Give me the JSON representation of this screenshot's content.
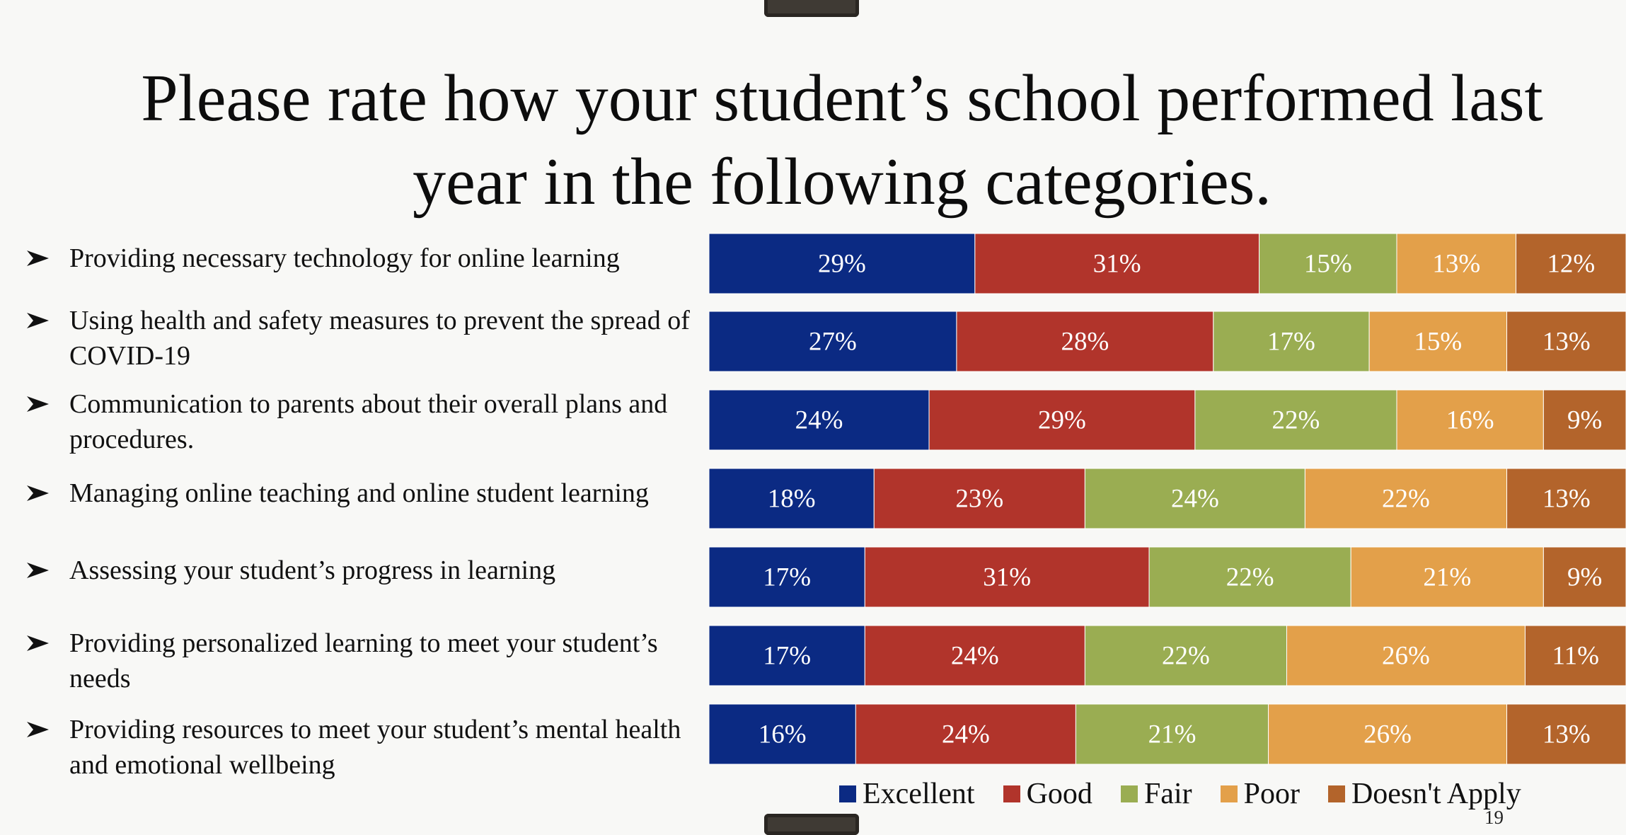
{
  "slide": {
    "title": "Please rate how your student’s school performed last year in the following categories.",
    "page_number": "19"
  },
  "colors": {
    "excellent": "#0b2a83",
    "good": "#b1342b",
    "fair": "#9aad52",
    "poor": "#e3a04a",
    "doesnt_apply": "#b3642b"
  },
  "chart_data": {
    "type": "bar",
    "orientation": "horizontal",
    "stacked": true,
    "normalized_to": 100,
    "categories": [
      "Providing necessary technology for online learning",
      "Using health and safety measures to prevent the spread of COVID-19",
      "Communication to parents about their overall plans and procedures.",
      "Managing online teaching and online student learning",
      "Assessing your student’s progress in learning",
      "Providing personalized learning to meet your student’s needs",
      "Providing resources to meet your student’s mental health and emotional wellbeing"
    ],
    "series": [
      {
        "name": "Excellent",
        "color": "#0b2a83",
        "values": [
          29,
          27,
          24,
          18,
          17,
          17,
          16
        ]
      },
      {
        "name": "Good",
        "color": "#b1342b",
        "values": [
          31,
          28,
          29,
          23,
          31,
          24,
          24
        ]
      },
      {
        "name": "Fair",
        "color": "#9aad52",
        "values": [
          15,
          17,
          22,
          24,
          22,
          22,
          21
        ]
      },
      {
        "name": "Poor",
        "color": "#e3a04a",
        "values": [
          13,
          15,
          16,
          22,
          21,
          26,
          26
        ]
      },
      {
        "name": "Doesn't Apply",
        "color": "#b3642b",
        "values": [
          12,
          13,
          9,
          13,
          9,
          11,
          13
        ]
      }
    ],
    "value_suffix": "%",
    "grid": false,
    "legend_position": "bottom"
  }
}
